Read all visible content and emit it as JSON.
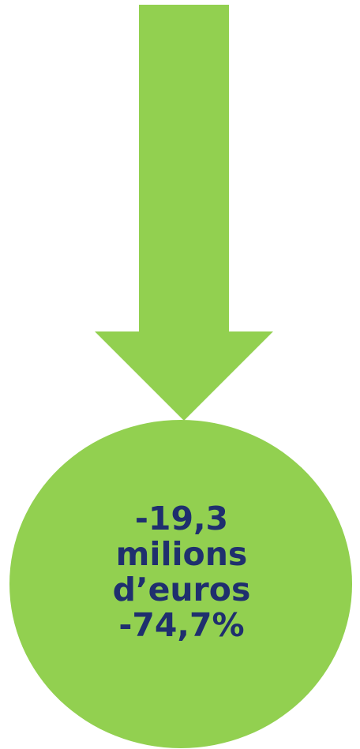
{
  "colors": {
    "shape_fill": "#92d050",
    "text": "#1f2f6e",
    "background": "#ffffff"
  },
  "callout": {
    "amount": "-19,3",
    "unit_line1": "milions",
    "unit_line2": "d’euros",
    "percent": "-74,7%"
  }
}
